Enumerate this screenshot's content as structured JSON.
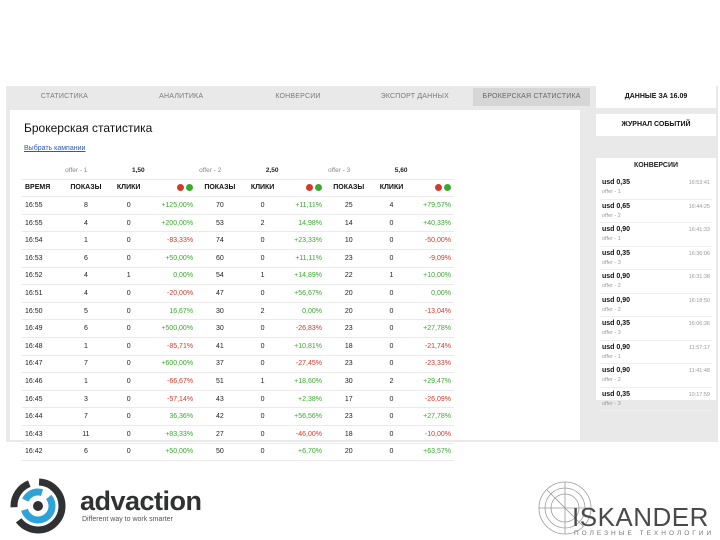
{
  "nav": {
    "tabs": [
      "СТАТИСТИКА",
      "АНАЛИТИКА",
      "КОНВЕРСИИ",
      "ЭКСПОРТ ДАННЫХ",
      "БРОКЕРСКАЯ СТАТИСТИКА"
    ]
  },
  "page": {
    "title": "Брокерская статистика",
    "choose_link": "Выбрать кампании"
  },
  "table": {
    "offers": [
      {
        "name": "offer - 1",
        "price": "1,50"
      },
      {
        "name": "offer - 2",
        "price": "2,50"
      },
      {
        "name": "offer - 3",
        "price": "5,60"
      }
    ],
    "headers": {
      "time": "ВРЕМЯ",
      "shows": "ПОКАЗЫ",
      "clicks": "КЛИКИ"
    },
    "rows": [
      {
        "time": "16:55",
        "o1": [
          "8",
          "0",
          "+125,00%"
        ],
        "o2": [
          "70",
          "0",
          "+11,11%"
        ],
        "o3": [
          "25",
          "4",
          "+79,57%"
        ]
      },
      {
        "time": "16:55",
        "o1": [
          "4",
          "0",
          "+200,00%"
        ],
        "o2": [
          "53",
          "2",
          "14,98%"
        ],
        "o3": [
          "14",
          "0",
          "+40,33%"
        ]
      },
      {
        "time": "16:54",
        "o1": [
          "1",
          "0",
          "-83,33%"
        ],
        "o2": [
          "74",
          "0",
          "+23,33%"
        ],
        "o3": [
          "10",
          "0",
          "-50,00%"
        ]
      },
      {
        "time": "16:53",
        "o1": [
          "6",
          "0",
          "+50,00%"
        ],
        "o2": [
          "60",
          "0",
          "+11,11%"
        ],
        "o3": [
          "23",
          "0",
          "-9,09%"
        ]
      },
      {
        "time": "16:52",
        "o1": [
          "4",
          "1",
          "0,00%"
        ],
        "o2": [
          "54",
          "1",
          "+14,89%"
        ],
        "o3": [
          "22",
          "1",
          "+10,00%"
        ]
      },
      {
        "time": "16:51",
        "o1": [
          "4",
          "0",
          "-20,00%"
        ],
        "o2": [
          "47",
          "0",
          "+56,67%"
        ],
        "o3": [
          "20",
          "0",
          "0,00%"
        ]
      },
      {
        "time": "16:50",
        "o1": [
          "5",
          "0",
          "16,67%"
        ],
        "o2": [
          "30",
          "2",
          "0,00%"
        ],
        "o3": [
          "20",
          "0",
          "-13,04%"
        ]
      },
      {
        "time": "16:49",
        "o1": [
          "6",
          "0",
          "+500,00%"
        ],
        "o2": [
          "30",
          "0",
          "-26,83%"
        ],
        "o3": [
          "23",
          "0",
          "+27,78%"
        ]
      },
      {
        "time": "16:48",
        "o1": [
          "1",
          "0",
          "-85,71%"
        ],
        "o2": [
          "41",
          "0",
          "+10,81%"
        ],
        "o3": [
          "18",
          "0",
          "-21,74%"
        ]
      },
      {
        "time": "16:47",
        "o1": [
          "7",
          "0",
          "+600,00%"
        ],
        "o2": [
          "37",
          "0",
          "-27,45%"
        ],
        "o3": [
          "23",
          "0",
          "-23,33%"
        ]
      },
      {
        "time": "16:46",
        "o1": [
          "1",
          "0",
          "-66,67%"
        ],
        "o2": [
          "51",
          "1",
          "+18,60%"
        ],
        "o3": [
          "30",
          "2",
          "+29,47%"
        ]
      },
      {
        "time": "16:45",
        "o1": [
          "3",
          "0",
          "-57,14%"
        ],
        "o2": [
          "43",
          "0",
          "+2,38%"
        ],
        "o3": [
          "17",
          "0",
          "-26,09%"
        ]
      },
      {
        "time": "16:44",
        "o1": [
          "7",
          "0",
          "36,36%"
        ],
        "o2": [
          "42",
          "0",
          "+56,56%"
        ],
        "o3": [
          "23",
          "0",
          "+27,78%"
        ]
      },
      {
        "time": "16:43",
        "o1": [
          "11",
          "0",
          "+83,33%"
        ],
        "o2": [
          "27",
          "0",
          "-46,00%"
        ],
        "o3": [
          "18",
          "0",
          "-10,00%"
        ]
      },
      {
        "time": "16:42",
        "o1": [
          "6",
          "0",
          "+50,00%"
        ],
        "o2": [
          "50",
          "0",
          "+6,70%"
        ],
        "o3": [
          "20",
          "0",
          "+63,57%"
        ]
      }
    ]
  },
  "sidebar": {
    "data_title": "ДАННЫЕ ЗА 16.09",
    "journal_title": "ЖУРНАЛ СОБЫТИЙ",
    "conversions_title": "КОНВЕРСИИ",
    "conversions": [
      {
        "amount": "usd 0,35",
        "offer": "offer - 1",
        "time": "16:53:41"
      },
      {
        "amount": "usd 0,65",
        "offer": "offer - 2",
        "time": "16:44:25"
      },
      {
        "amount": "usd 0,90",
        "offer": "offer - 1",
        "time": "16:41:33"
      },
      {
        "amount": "usd 0,35",
        "offer": "offer - 3",
        "time": "16:36:06"
      },
      {
        "amount": "usd 0,90",
        "offer": "offer - 2",
        "time": "16:31:38"
      },
      {
        "amount": "usd 0,90",
        "offer": "offer - 2",
        "time": "16:18:50"
      },
      {
        "amount": "usd 0,35",
        "offer": "offer - 3",
        "time": "16:06:36"
      },
      {
        "amount": "usd 0,90",
        "offer": "offer - 1",
        "time": "11:57:17"
      },
      {
        "amount": "usd 0,90",
        "offer": "offer - 2",
        "time": "11:41:48"
      },
      {
        "amount": "usd 0,35",
        "offer": "offer - 3",
        "time": "10:17:59"
      }
    ]
  },
  "footer": {
    "advaction_name": "advaction",
    "advaction_tagline": "Different way to work smarter",
    "iskander_name": "ISKANDER",
    "iskander_tagline": "ПОЛЕЗНЫЕ ТЕХНОЛОГИИ"
  },
  "colors": {
    "positive": "#3aa82f",
    "negative": "#d23a2a",
    "panel_bg": "#e9e9e9",
    "active_tab": "#d6d6d6"
  },
  "icons": {
    "reject": "red-dot-icon",
    "approve": "green-dot-icon"
  }
}
